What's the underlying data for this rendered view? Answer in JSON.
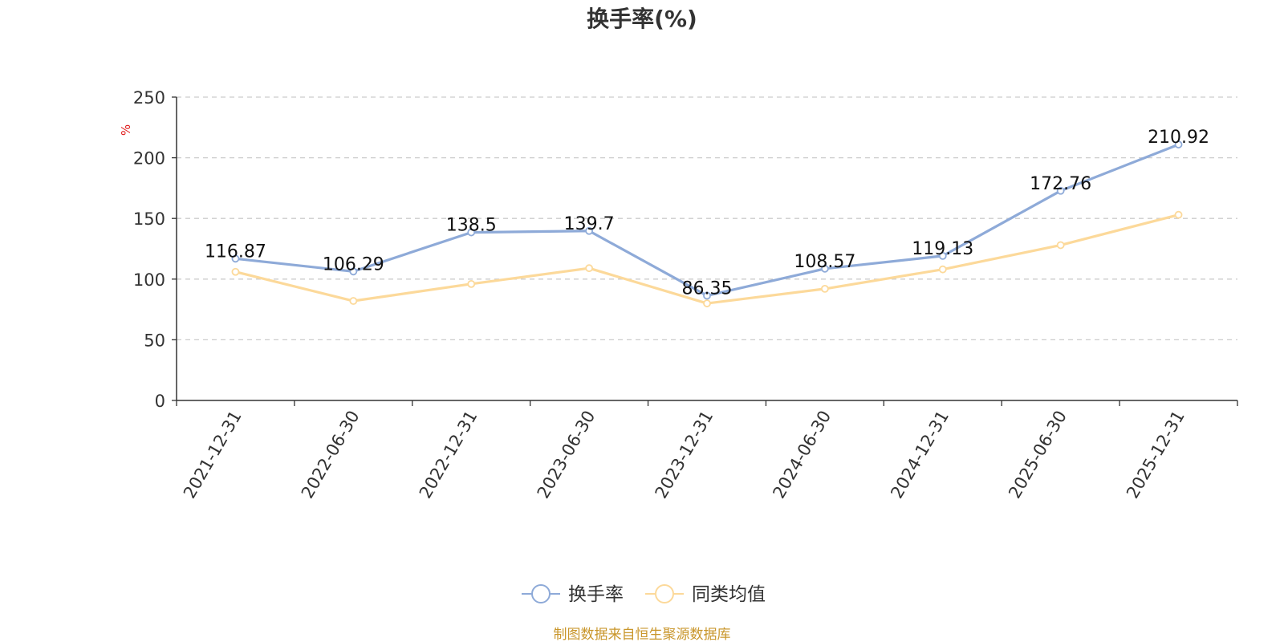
{
  "chart_data": {
    "type": "line",
    "title": "换手率(%)",
    "ylabel": "%",
    "xlabel": "",
    "categories": [
      "2021-12-31",
      "2022-06-30",
      "2022-12-31",
      "2023-06-30",
      "2023-12-31",
      "2024-06-30",
      "2024-12-31",
      "2025-06-30",
      "2025-12-31"
    ],
    "ylim": [
      0,
      250
    ],
    "yticks": [
      0,
      50,
      100,
      150,
      200,
      250
    ],
    "ytick_labels": [
      "0",
      "50",
      "100",
      "150",
      "200",
      "250"
    ],
    "grid": true,
    "legend_position": "bottom-center",
    "series": [
      {
        "name": "换手率",
        "color": "#8eaad8",
        "values": [
          116.87,
          106.29,
          138.5,
          139.7,
          86.35,
          108.57,
          119.13,
          172.76,
          210.92
        ],
        "labels": [
          "116.87",
          "106.29",
          "138.5",
          "139.7",
          "86.35",
          "108.57",
          "119.13",
          "172.76",
          "210.92"
        ]
      },
      {
        "name": "同类均值",
        "color": "#fcd99a",
        "values": [
          106,
          82,
          96,
          109,
          80,
          92,
          108,
          128,
          153
        ]
      }
    ],
    "unit_color": "#e01b1b",
    "source": "制图数据来自恒生聚源数据库",
    "source_color": "#c9962b"
  }
}
